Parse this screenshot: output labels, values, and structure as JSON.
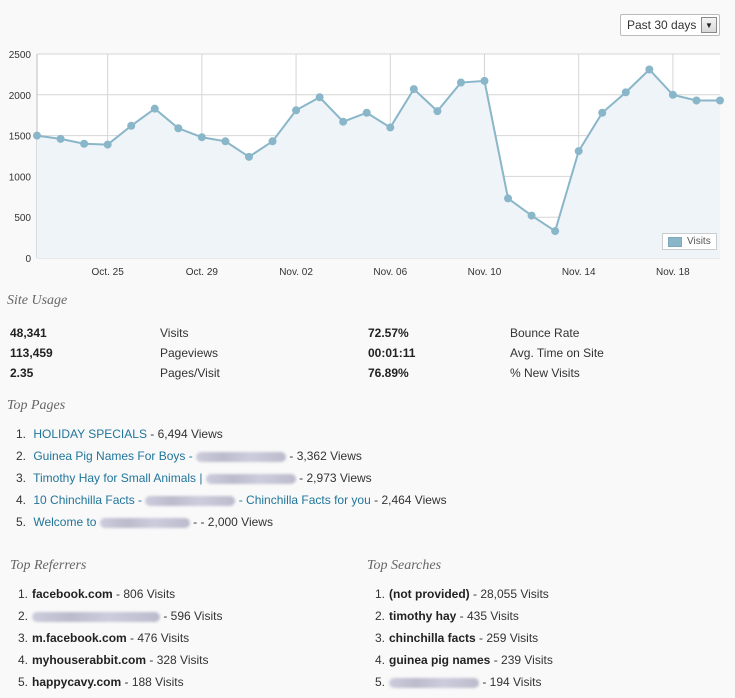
{
  "range_select": {
    "value": "Past 30 days"
  },
  "chart_data": {
    "type": "area",
    "x": [
      "Oct. 22",
      "Oct. 23",
      "Oct. 24",
      "Oct. 25",
      "Oct. 26",
      "Oct. 27",
      "Oct. 28",
      "Oct. 29",
      "Oct. 30",
      "Oct. 31",
      "Nov. 01",
      "Nov. 02",
      "Nov. 03",
      "Nov. 04",
      "Nov. 05",
      "Nov. 06",
      "Nov. 07",
      "Nov. 08",
      "Nov. 09",
      "Nov. 10",
      "Nov. 11",
      "Nov. 12",
      "Nov. 13",
      "Nov. 14",
      "Nov. 15",
      "Nov. 16",
      "Nov. 17",
      "Nov. 18",
      "Nov. 19",
      "Nov. 20"
    ],
    "series": [
      {
        "name": "Visits",
        "values": [
          1500,
          1460,
          1400,
          1390,
          1620,
          1830,
          1590,
          1480,
          1430,
          1240,
          1430,
          1810,
          1970,
          1670,
          1780,
          1600,
          2070,
          1800,
          2150,
          2170,
          730,
          520,
          330,
          1310,
          1780,
          2030,
          2310,
          2000,
          1930,
          1930
        ]
      }
    ],
    "x_ticks": [
      "Oct. 25",
      "Oct. 29",
      "Nov. 02",
      "Nov. 06",
      "Nov. 10",
      "Nov. 14",
      "Nov. 18"
    ],
    "y_ticks": [
      "0",
      "500",
      "1000",
      "1500",
      "2000",
      "2500"
    ],
    "ylim": [
      0,
      2500
    ],
    "grid": true,
    "legend": "bottom-right",
    "color": "#8ab6c9"
  },
  "site_usage": {
    "title": "Site Usage",
    "left": [
      {
        "value": "48,341",
        "label": "Visits"
      },
      {
        "value": "113,459",
        "label": "Pageviews"
      },
      {
        "value": "2.35",
        "label": "Pages/Visit"
      }
    ],
    "right": [
      {
        "value": "72.57%",
        "label": "Bounce Rate"
      },
      {
        "value": "00:01:11",
        "label": "Avg. Time on Site"
      },
      {
        "value": "76.89%",
        "label": "% New Visits"
      }
    ]
  },
  "top_pages": {
    "title": "Top Pages",
    "items": [
      {
        "num": "1.",
        "link": "HOLIDAY SPECIALS",
        "suffix": " - 6,494 Views"
      },
      {
        "num": "2.",
        "link": "Guinea Pig Names For Boys - ",
        "suffix": " - 3,362 Views"
      },
      {
        "num": "3.",
        "link": "Timothy Hay for Small Animals | ",
        "suffix": " - 2,973 Views"
      },
      {
        "num": "4.",
        "link": "10 Chinchilla Facts - ",
        "link2": " - Chinchilla Facts for you",
        "suffix": " - 2,464 Views"
      },
      {
        "num": "5.",
        "link": "Welcome to ",
        "suffix": " - - 2,000 Views"
      }
    ]
  },
  "top_referrers": {
    "title": "Top Referrers",
    "items": [
      {
        "num": "1.",
        "name": "facebook.com",
        "suffix": " - 806 Visits"
      },
      {
        "num": "2.",
        "name": "",
        "suffix": " - 596 Visits"
      },
      {
        "num": "3.",
        "name": "m.facebook.com",
        "suffix": " - 476 Visits"
      },
      {
        "num": "4.",
        "name": "myhouserabbit.com",
        "suffix": " - 328 Visits"
      },
      {
        "num": "5.",
        "name": "happycavy.com",
        "suffix": " - 188 Visits"
      }
    ]
  },
  "top_searches": {
    "title": "Top Searches",
    "items": [
      {
        "num": "1.",
        "name": "(not provided)",
        "suffix": " - 28,055 Visits"
      },
      {
        "num": "2.",
        "name": "timothy hay",
        "suffix": " - 435 Visits"
      },
      {
        "num": "3.",
        "name": "chinchilla facts",
        "suffix": " - 259 Visits"
      },
      {
        "num": "4.",
        "name": "guinea pig names",
        "suffix": " - 239 Visits"
      },
      {
        "num": "5.",
        "name": "",
        "suffix": " - 194 Visits"
      }
    ]
  }
}
